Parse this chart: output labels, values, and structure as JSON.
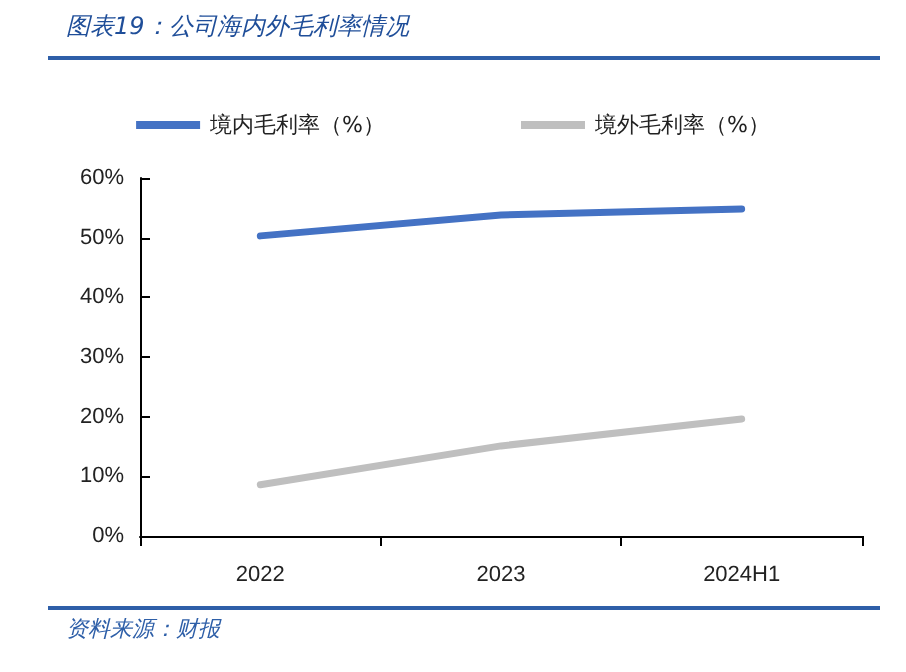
{
  "chart_data": {
    "type": "line",
    "title": "图表19：公司海内外毛利率情况",
    "annotations": [
      "资料来源：财报"
    ],
    "categories": [
      "2022",
      "2023",
      "2024H1"
    ],
    "series": [
      {
        "name": "境内毛利率（%）",
        "color": "#4472c4",
        "values": [
          50.3,
          53.8,
          54.8
        ]
      },
      {
        "name": "境外毛利率（%）",
        "color": "#bfbfbf",
        "values": [
          8.6,
          15.1,
          19.6
        ]
      }
    ],
    "ylim": [
      0,
      60
    ],
    "yticks": [
      {
        "value": 0,
        "label": "0%"
      },
      {
        "value": 10,
        "label": "10%"
      },
      {
        "value": 20,
        "label": "20%"
      },
      {
        "value": 30,
        "label": "30%"
      },
      {
        "value": 40,
        "label": "40%"
      },
      {
        "value": 50,
        "label": "50%"
      },
      {
        "value": 60,
        "label": "60%"
      }
    ],
    "grid": false,
    "legend": "top",
    "marker": "none",
    "line_style": "solid"
  }
}
